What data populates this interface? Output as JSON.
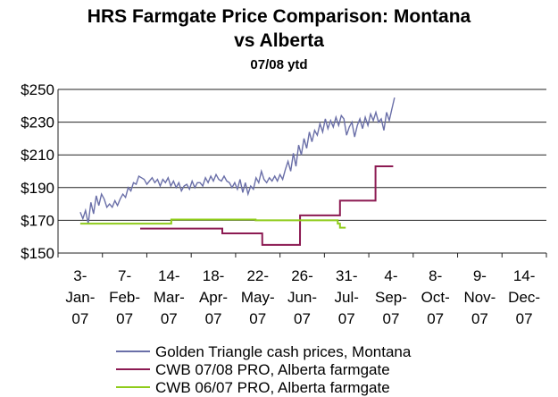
{
  "chart_data": {
    "type": "line",
    "title": "HRS Farmgate Price Comparison: Montana vs Alberta",
    "title_lines": [
      "HRS Farmgate Price Comparison: Montana",
      "vs Alberta"
    ],
    "subtitle": "07/08 ytd",
    "xlabel": "",
    "ylabel": "",
    "ylim": [
      150,
      250
    ],
    "yticks": [
      "$150",
      "$170",
      "$190",
      "$210",
      "$230",
      "$250"
    ],
    "ytick_values": [
      150,
      170,
      190,
      210,
      230,
      250
    ],
    "xticks": [
      {
        "label": [
          "3-",
          "Jan-",
          "07"
        ]
      },
      {
        "label": [
          "7-",
          "Feb-",
          "07"
        ]
      },
      {
        "label": [
          "14-",
          "Mar-",
          "07"
        ]
      },
      {
        "label": [
          "18-",
          "Apr-",
          "07"
        ]
      },
      {
        "label": [
          "22-",
          "May-",
          "07"
        ]
      },
      {
        "label": [
          "26-",
          "Jun-",
          "07"
        ]
      },
      {
        "label": [
          "31-",
          "Jul-",
          "07"
        ]
      },
      {
        "label": [
          "4-",
          "Sep-",
          "07"
        ]
      },
      {
        "label": [
          "8-",
          "Oct-",
          "07"
        ]
      },
      {
        "label": [
          "9-",
          "Nov-",
          "07"
        ]
      },
      {
        "label": [
          "14-",
          "Dec-",
          "07"
        ]
      }
    ],
    "grid": "horizontal",
    "legend_position": "bottom",
    "series": [
      {
        "name": "Golden Triangle cash prices, Montana",
        "color": "#6a6fa8",
        "x": [
          0.0,
          0.06,
          0.12,
          0.18,
          0.24,
          0.3,
          0.36,
          0.42,
          0.48,
          0.54,
          0.6,
          0.66,
          0.72,
          0.78,
          0.84,
          0.9,
          0.96,
          1.02,
          1.08,
          1.14,
          1.2,
          1.26,
          1.32,
          1.38,
          1.44,
          1.5,
          1.56,
          1.62,
          1.68,
          1.74,
          1.8,
          1.86,
          1.92,
          1.98,
          2.04,
          2.1,
          2.16,
          2.22,
          2.28,
          2.34,
          2.4,
          2.46,
          2.52,
          2.58,
          2.64,
          2.7,
          2.76,
          2.82,
          2.88,
          2.94,
          3.0,
          3.06,
          3.12,
          3.18,
          3.24,
          3.3,
          3.36,
          3.42,
          3.48,
          3.54,
          3.6,
          3.66,
          3.72,
          3.78,
          3.84,
          3.9,
          3.96,
          4.02,
          4.08,
          4.14,
          4.2,
          4.26,
          4.32,
          4.38,
          4.44,
          4.5,
          4.56,
          4.62,
          4.68,
          4.74,
          4.8,
          4.86,
          4.92,
          4.98,
          5.04,
          5.1,
          5.16,
          5.22,
          5.28,
          5.34,
          5.4,
          5.46,
          5.52,
          5.58,
          5.64,
          5.7,
          5.76,
          5.82,
          5.88,
          5.94,
          6.0,
          6.06,
          6.12,
          6.18,
          6.24,
          6.3,
          6.36,
          6.42,
          6.48,
          6.54,
          6.6,
          6.66,
          6.72,
          6.78,
          6.84,
          6.9,
          6.96,
          7.02,
          7.08
        ],
        "values": [
          175,
          171,
          176,
          168,
          181,
          174,
          185,
          179,
          186,
          183,
          178,
          180,
          178,
          182,
          179,
          183,
          186,
          184,
          190,
          188,
          193,
          192,
          197,
          196,
          195,
          192,
          194,
          196,
          193,
          195,
          191,
          195,
          193,
          196,
          191,
          194,
          190,
          193,
          188,
          191,
          192,
          189,
          194,
          190,
          193,
          193,
          191,
          196,
          193,
          197,
          194,
          198,
          195,
          194,
          197,
          194,
          193,
          190,
          193,
          189,
          195,
          187,
          193,
          186,
          191,
          189,
          196,
          193,
          200,
          195,
          193,
          196,
          194,
          197,
          194,
          198,
          195,
          201,
          206,
          200,
          211,
          203,
          216,
          210,
          220,
          214,
          224,
          218,
          225,
          222,
          229,
          224,
          232,
          226,
          231,
          227,
          233,
          228,
          234,
          232,
          222,
          227,
          230,
          221,
          228,
          232,
          226,
          233,
          228,
          235,
          231,
          236,
          230,
          232,
          225,
          236,
          231,
          238,
          245
        ]
      },
      {
        "name": "CWB 07/08 PRO, Alberta farmgate",
        "color": "#8c1a52",
        "x": [
          1.35,
          3.2,
          3.201,
          4.1,
          4.101,
          4.95,
          4.951,
          5.85,
          5.851,
          6.65,
          6.651,
          7.05
        ],
        "values": [
          165,
          165,
          162,
          162,
          155,
          155,
          173,
          173,
          182,
          182,
          203,
          203
        ]
      },
      {
        "name": "CWB 06/07 PRO, Alberta farmgate",
        "color": "#8fcc1a",
        "x": [
          0.0,
          2.05,
          2.051,
          3.95,
          3.951,
          5.8,
          5.801,
          5.85,
          5.851,
          5.98
        ],
        "values": [
          168,
          168,
          170.5,
          170.5,
          170,
          170,
          168,
          168,
          165.5,
          165.5
        ]
      }
    ]
  }
}
